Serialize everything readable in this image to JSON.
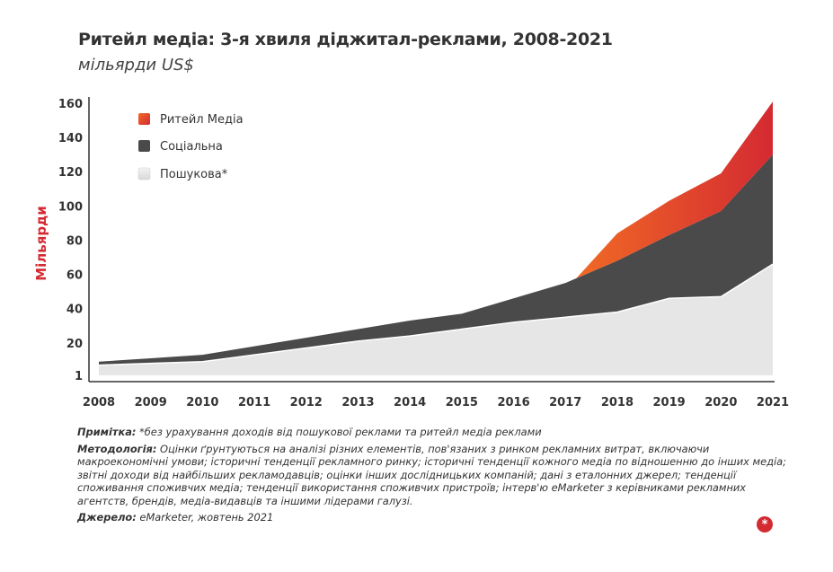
{
  "title": "Ритейл медіа: 3-я хвиля діджитал-реклами, 2008-2021",
  "subtitle": "мільярди US$",
  "colors": {
    "retail": "#d42a32",
    "retail_light": "#ee5a2a",
    "social": "#4a4a4a",
    "search": "#e6e6e6",
    "axis_label": "#d42a32"
  },
  "chart_data": {
    "type": "area",
    "stacked": true,
    "ylabel": "Мільярди",
    "xlabel": "",
    "x": [
      "2008",
      "2009",
      "2010",
      "2011",
      "2012",
      "2013",
      "2014",
      "2015",
      "2016",
      "2017",
      "2018",
      "2019",
      "2020",
      "2021"
    ],
    "y_ticks": [
      "1",
      "20",
      "40",
      "60",
      "80",
      "100",
      "120",
      "140",
      "160"
    ],
    "ylim": [
      1,
      160
    ],
    "grid": false,
    "legend_position": "top-left",
    "series": [
      {
        "name": "Пошукова*",
        "color": "#e6e6e6",
        "values": [
          7,
          8,
          9,
          13,
          17,
          21,
          24,
          28,
          32,
          35,
          38,
          46,
          47,
          66
        ]
      },
      {
        "name": "Соціальна",
        "color": "#4a4a4a",
        "values": [
          2,
          3,
          4,
          5,
          6,
          7,
          9,
          9,
          14,
          20,
          30,
          37,
          50,
          64
        ]
      },
      {
        "name": "Ритейл Медіа",
        "color": "#d42a32",
        "start_index": 9,
        "values": [
          null,
          null,
          null,
          null,
          null,
          null,
          null,
          null,
          null,
          6,
          16,
          20,
          22,
          31
        ]
      }
    ]
  },
  "legend": {
    "items": [
      {
        "label": "Ритейл Медіа"
      },
      {
        "label": "Соціальна"
      },
      {
        "label": "Пошукова*"
      }
    ]
  },
  "notes": {
    "note_label": "Примітка:",
    "note_text": " *без урахування доходів від пошукової реклами та ритейл медіа реклами",
    "method_label": "Методологія:",
    "method_text": " Оцінки ґрунтуються на аналізі різних елементів, пов'язаних з ринком рекламних витрат, включаючи макроекономічні умови; історичні тенденції рекламного ринку; історичні тенденції кожного медіа по відношенню до інших медіа; звітні доходи від найбільших рекламодавців; оцінки інших дослідницьких компаній; дані з еталонних джерел; тенденції споживання споживчих медіа; тенденції використання споживчих пристроїв; інтерв'ю eMarketer з керівниками рекламних агентств, брендів, медіа-видавців та іншими лідерами галузі.",
    "source_label": "Джерело:",
    "source_text": " eMarketer, жовтень 2021"
  },
  "logo_glyph": "*"
}
